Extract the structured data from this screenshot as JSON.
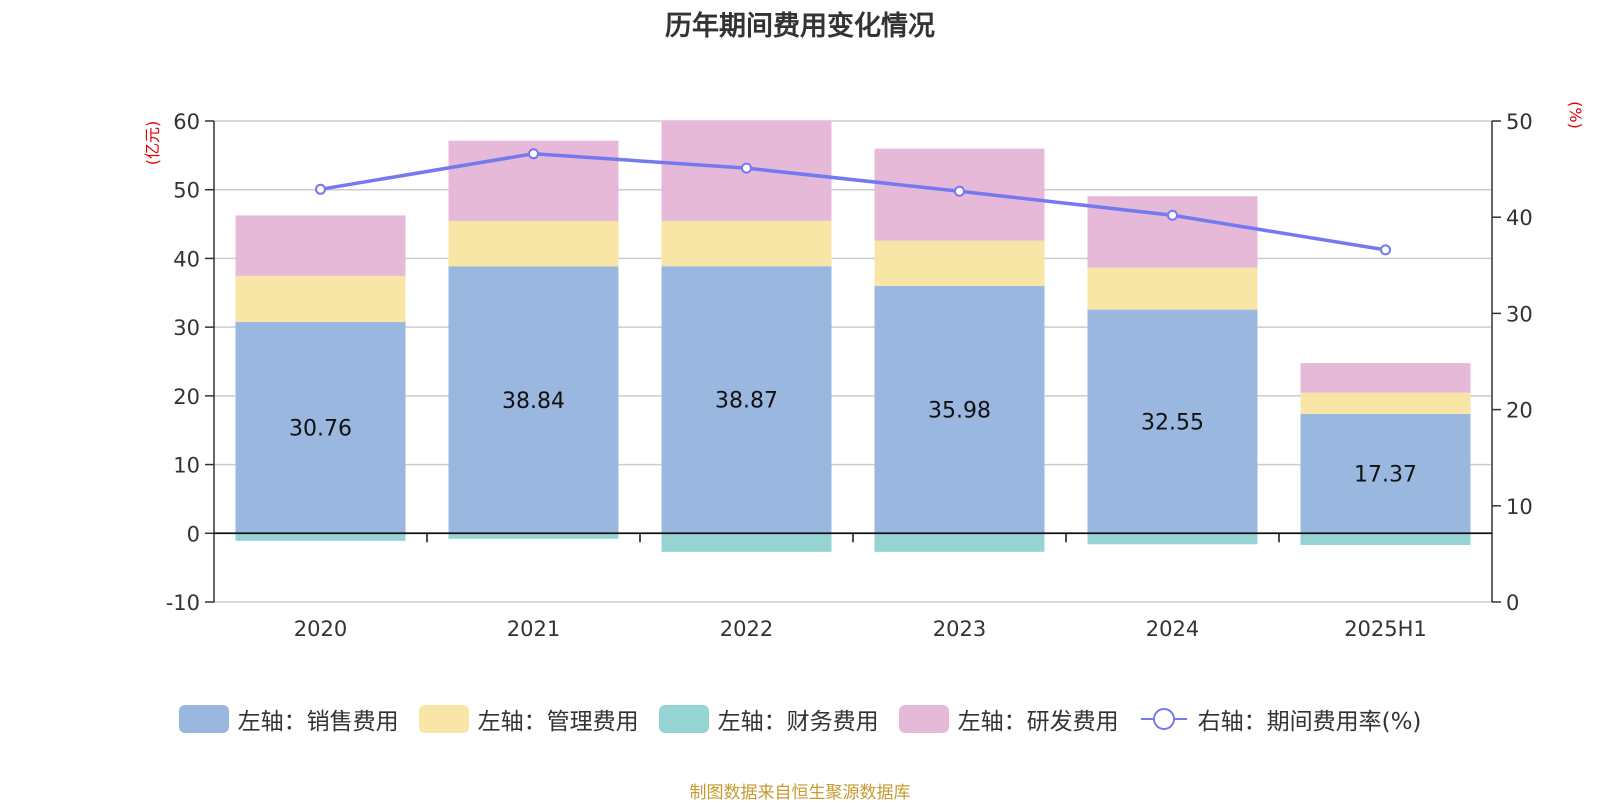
{
  "title": "历年期间费用变化情况",
  "left_unit": "(亿元)",
  "right_unit": "(%)",
  "source": "制图数据来自恒生聚源数据库",
  "chart_data": {
    "type": "bar",
    "stacked": true,
    "categories": [
      "2020",
      "2021",
      "2022",
      "2023",
      "2024",
      "2025H1"
    ],
    "left_axis": {
      "min": -10,
      "max": 60,
      "ticks": [
        "-10",
        "0",
        "10",
        "20",
        "30",
        "40",
        "50",
        "60"
      ]
    },
    "right_axis": {
      "min": 0,
      "max": 50,
      "ticks": [
        "0",
        "10",
        "20",
        "30",
        "40",
        "50"
      ]
    },
    "grid": true,
    "legend_position": "bottom",
    "series": [
      {
        "name": "左轴：销售费用",
        "axis": "left",
        "color": "#9ab7e0",
        "values": [
          30.76,
          38.84,
          38.87,
          35.98,
          32.55,
          17.37
        ],
        "labels": [
          "30.76",
          "38.84",
          "38.87",
          "35.98",
          "32.55",
          "17.37"
        ]
      },
      {
        "name": "左轴：管理费用",
        "axis": "left",
        "color": "#f8e6a6",
        "values": [
          6.7,
          6.6,
          6.6,
          6.6,
          6.1,
          3.1
        ]
      },
      {
        "name": "左轴：财务费用",
        "axis": "left",
        "color": "#96d4d4",
        "values": [
          -1.1,
          -0.8,
          -2.7,
          -2.7,
          -1.6,
          -1.7
        ]
      },
      {
        "name": "左轴：研发费用",
        "axis": "left",
        "color": "#e7b9d9",
        "values": [
          8.8,
          11.7,
          14.6,
          13.4,
          10.4,
          4.3
        ]
      },
      {
        "name": "右轴：期间费用率(%)",
        "axis": "right",
        "type": "line",
        "color": "#7479f0",
        "values": [
          42.9,
          46.6,
          45.1,
          42.7,
          40.2,
          36.6
        ]
      }
    ]
  }
}
